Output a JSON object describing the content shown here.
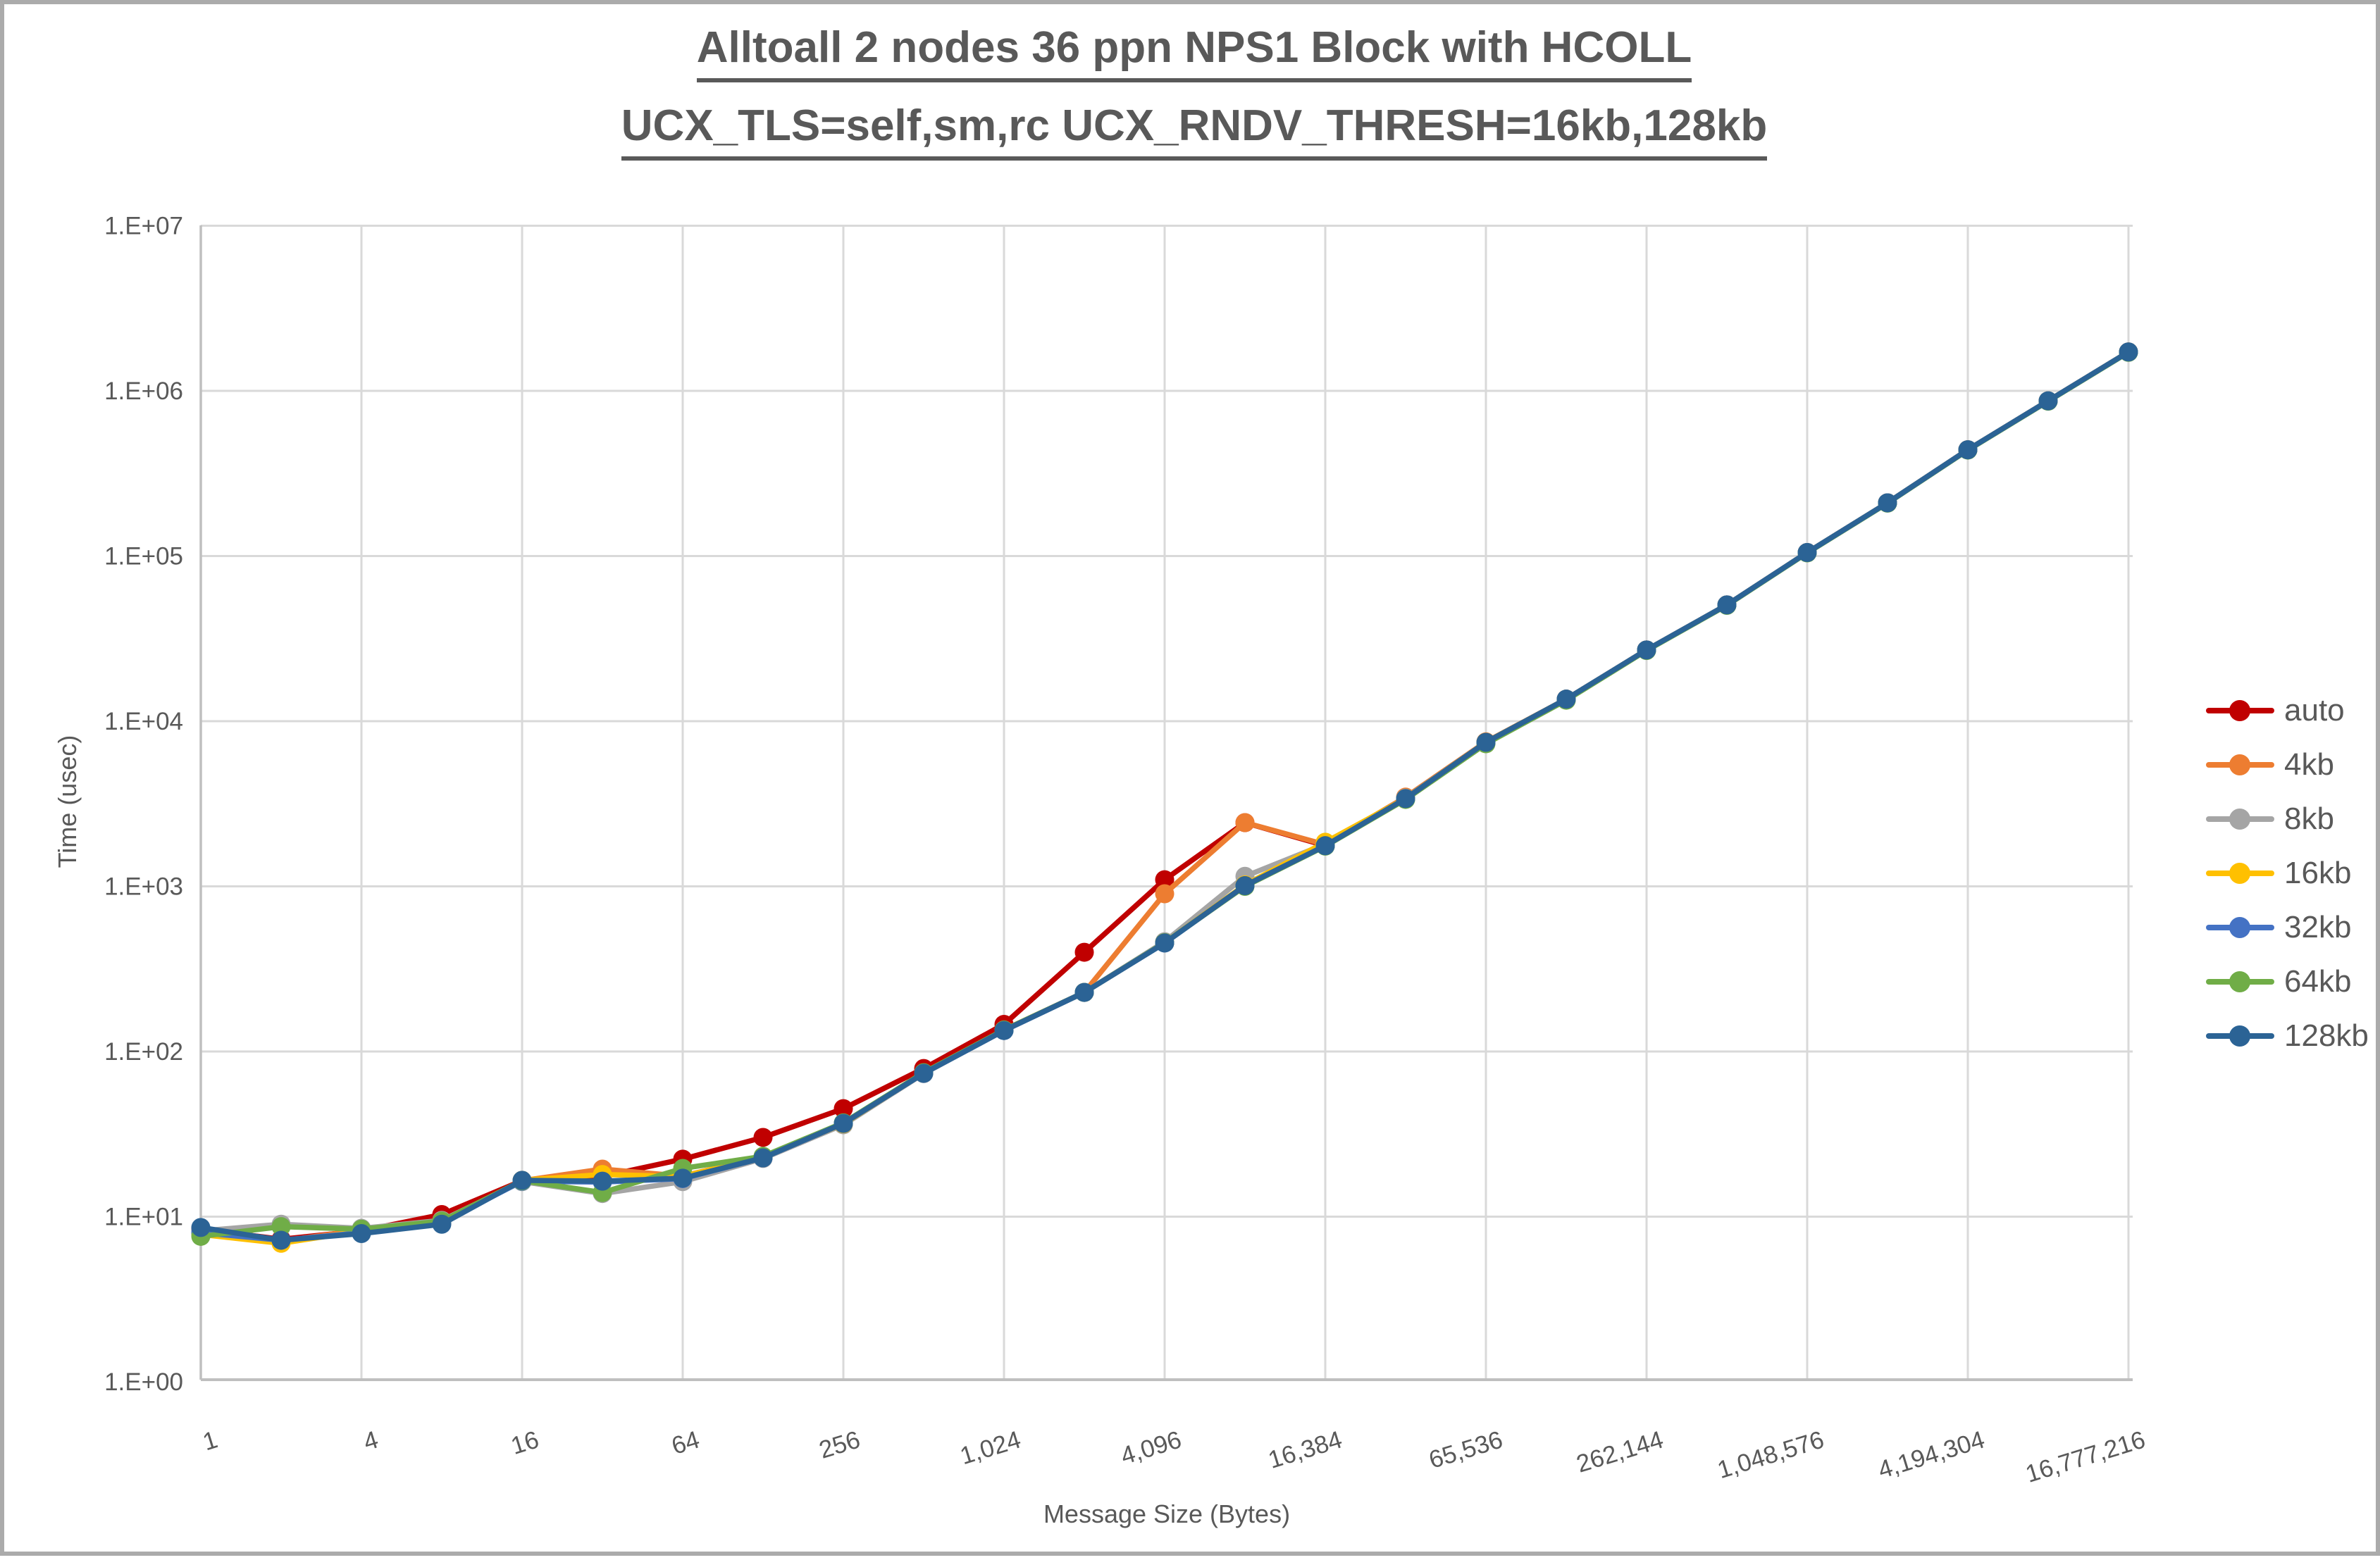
{
  "title": {
    "line1": "Alltoall 2 nodes 36 ppn NPS1 Block with HCOLL",
    "line2": "UCX_TLS=self,sm,rc UCX_RNDV_THRESH=16kb,128kb"
  },
  "style": {
    "title_color": "#595959",
    "text_color": "#595959",
    "gridline_color": "#D9D9D9",
    "axis_color": "#BFBFBF",
    "background": "#FFFFFF",
    "page_border_color": "#ABABAB"
  },
  "axes": {
    "y": {
      "title": "Time (usec)",
      "tick_labels": [
        "1.E+00",
        "1.E+01",
        "1.E+02",
        "1.E+03",
        "1.E+04",
        "1.E+05",
        "1.E+06",
        "1.E+07"
      ]
    },
    "x": {
      "title": "Message Size (Bytes)",
      "tick_labels": [
        "1",
        "4",
        "16",
        "64",
        "256",
        "1,024",
        "4,096",
        "16,384",
        "65,536",
        "262,144",
        "1,048,576",
        "4,194,304",
        "16,777,216"
      ]
    }
  },
  "legend": {
    "position": "right",
    "entries": [
      {
        "label": "auto",
        "color": "#C00000"
      },
      {
        "label": "4kb",
        "color": "#ED7D31"
      },
      {
        "label": "8kb",
        "color": "#A5A5A5"
      },
      {
        "label": "16kb",
        "color": "#FFC000"
      },
      {
        "label": "32kb",
        "color": "#4472C4"
      },
      {
        "label": "64kb",
        "color": "#70AD47"
      },
      {
        "label": "128kb",
        "color": "#2B6395"
      }
    ]
  },
  "chart_data": {
    "type": "line",
    "title": "Alltoall 2 nodes 36 ppn NPS1 Block with HCOLL UCX_TLS=self,sm,rc UCX_RNDV_THRESH=16kb,128kb",
    "xlabel": "Message Size (Bytes)",
    "ylabel": "Time (usec)",
    "x_scale": "log2",
    "y_scale": "log10",
    "ylim": [
      1,
      10000000
    ],
    "grid": true,
    "legend_position": "right",
    "marker": "circle",
    "x": [
      1,
      2,
      4,
      8,
      16,
      32,
      64,
      128,
      256,
      512,
      1024,
      2048,
      4096,
      8192,
      16384,
      32768,
      65536,
      131072,
      262144,
      524288,
      1048576,
      2097152,
      4194304,
      8388608,
      16777216
    ],
    "series": [
      {
        "name": "auto",
        "color": "#C00000",
        "values": [
          8.4,
          7.3,
          8.2,
          10.3,
          16.5,
          17.5,
          22.3,
          30.2,
          45.1,
          78.9,
          146,
          399,
          1097,
          2430,
          1765,
          3400,
          7450,
          13600,
          27000,
          50600,
          105000,
          210000,
          440000,
          870000,
          1720000
        ]
      },
      {
        "name": "4kb",
        "color": "#ED7D31",
        "values": [
          8.0,
          7.1,
          8.3,
          9.3,
          16.5,
          19.4,
          17.6,
          23.0,
          36.5,
          74.0,
          135,
          228,
          902,
          2432,
          1790,
          3470,
          7500,
          13600,
          27000,
          50600,
          105000,
          210000,
          440000,
          870000,
          1720000
        ]
      },
      {
        "name": "8kb",
        "color": "#A5A5A5",
        "values": [
          8.2,
          9.0,
          8.5,
          9.5,
          16.3,
          13.8,
          16.3,
          22.5,
          36.0,
          73.5,
          134,
          228,
          462,
          1150,
          1800,
          3420,
          7450,
          13600,
          27000,
          50600,
          105000,
          210000,
          440000,
          870000,
          1720000
        ]
      },
      {
        "name": "16kb",
        "color": "#FFC000",
        "values": [
          7.8,
          6.9,
          8.2,
          9.2,
          16.6,
          18.0,
          17.5,
          23.0,
          36.5,
          74.0,
          135,
          228,
          455,
          1020,
          1850,
          3400,
          7450,
          13600,
          27000,
          50600,
          105000,
          210000,
          440000,
          870000,
          1720000
        ]
      },
      {
        "name": "32kb",
        "color": "#4472C4",
        "values": [
          8.0,
          7.2,
          8.0,
          9.2,
          16.4,
          16.2,
          17.0,
          22.7,
          36.7,
          73.8,
          134,
          228,
          454,
          1010,
          1762,
          3380,
          7400,
          13600,
          27000,
          50600,
          105000,
          210000,
          440000,
          870000,
          1720000
        ]
      },
      {
        "name": "64kb",
        "color": "#70AD47",
        "values": [
          7.6,
          8.7,
          8.4,
          9.4,
          16.5,
          14.0,
          19.6,
          23.2,
          37.0,
          74.5,
          135,
          228,
          456,
          1000,
          1752,
          3360,
          7300,
          13400,
          26800,
          50300,
          104500,
          209000,
          438000,
          866000,
          1712000
        ]
      },
      {
        "name": "128kb",
        "color": "#2B6395",
        "values": [
          8.6,
          7.2,
          7.9,
          9.0,
          16.6,
          16.4,
          17.1,
          22.7,
          36.7,
          73.8,
          134,
          228,
          454,
          1010,
          1762,
          3400,
          7450,
          13600,
          27000,
          50600,
          105000,
          210000,
          440000,
          870000,
          1720000
        ]
      }
    ]
  }
}
